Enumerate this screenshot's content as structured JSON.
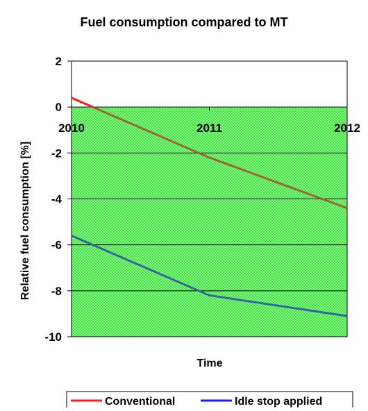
{
  "chart_data": {
    "type": "line",
    "title": "Fuel consumption compared to MT",
    "xlabel": "Time",
    "ylabel": "Relative fuel consumption [%]",
    "x": [
      2010,
      2011,
      2012
    ],
    "x_tick_labels": [
      "2010",
      "2011",
      "2012"
    ],
    "ylim": [
      -10,
      2
    ],
    "y_ticks": [
      2,
      0,
      -2,
      -4,
      -6,
      -8,
      -10
    ],
    "y_tick_labels": [
      "2",
      "0",
      "-2",
      "-4",
      "-6",
      "-8",
      "-10"
    ],
    "grid": true,
    "negative_region_fill": "#33e433",
    "legend_position": "bottom",
    "series": [
      {
        "name": "Conventional",
        "color": "#ff1a1a",
        "negative_color": "#996633",
        "x": [
          2010,
          2011,
          2012
        ],
        "values": [
          0.4,
          -2.2,
          -4.4
        ]
      },
      {
        "name": "Idle stop applied",
        "color": "#1a1aff",
        "negative_color": "#336699",
        "x": [
          2010,
          2011,
          2012
        ],
        "values": [
          -5.6,
          -8.2,
          -9.1
        ]
      }
    ]
  }
}
